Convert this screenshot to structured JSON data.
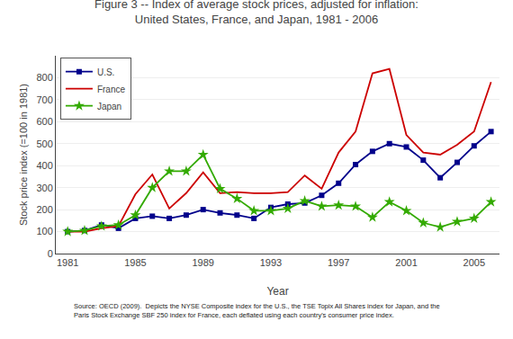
{
  "chart_data": {
    "type": "line",
    "title": "Figure 3 -- Index of average stock prices, adjusted for inflation:",
    "subtitle": "United States, France, and Japan, 1981 - 2006",
    "xlabel": "Year",
    "ylabel": "Stock price index (=100 in 1981)",
    "annotations": [
      "Source: OECD (2009).  Depicts the NYSE Composite index for the U.S., the TSE Topix All Shares index for Japan, and the\nParis Stock Exchange SBF 250 index for France, each deflated using each country's consumer price index."
    ],
    "x": [
      1981,
      1982,
      1983,
      1984,
      1985,
      1986,
      1987,
      1988,
      1989,
      1990,
      1991,
      1992,
      1993,
      1994,
      1995,
      1996,
      1997,
      1998,
      1999,
      2000,
      2001,
      2002,
      2003,
      2004,
      2005,
      2006
    ],
    "series": [
      {
        "name": "U.S.",
        "color": "#00008B",
        "marker": "square",
        "values": [
          100,
          105,
          130,
          115,
          160,
          170,
          160,
          175,
          200,
          185,
          175,
          160,
          210,
          225,
          230,
          265,
          320,
          405,
          465,
          500,
          485,
          425,
          345,
          415,
          490,
          555
        ]
      },
      {
        "name": "France",
        "color": "#CC0000",
        "values": [
          100,
          100,
          115,
          125,
          270,
          360,
          205,
          275,
          370,
          275,
          280,
          275,
          275,
          280,
          355,
          295,
          460,
          555,
          820,
          840,
          540,
          460,
          450,
          495,
          555,
          780
        ]
      },
      {
        "name": "Japan",
        "color": "#33AA00",
        "marker": "star",
        "values": [
          100,
          105,
          125,
          130,
          175,
          300,
          375,
          375,
          450,
          295,
          250,
          195,
          195,
          205,
          240,
          215,
          220,
          215,
          165,
          235,
          195,
          140,
          120,
          145,
          160,
          235
        ]
      }
    ],
    "xlim": [
      1980.3,
      2006.5
    ],
    "xticks": [
      1981,
      1985,
      1989,
      1993,
      1997,
      2001,
      2005
    ],
    "ylim": [
      0,
      900
    ],
    "yticks": [
      0,
      100,
      200,
      300,
      400,
      500,
      600,
      700,
      800
    ],
    "grid": "y",
    "legend": "upper left"
  }
}
